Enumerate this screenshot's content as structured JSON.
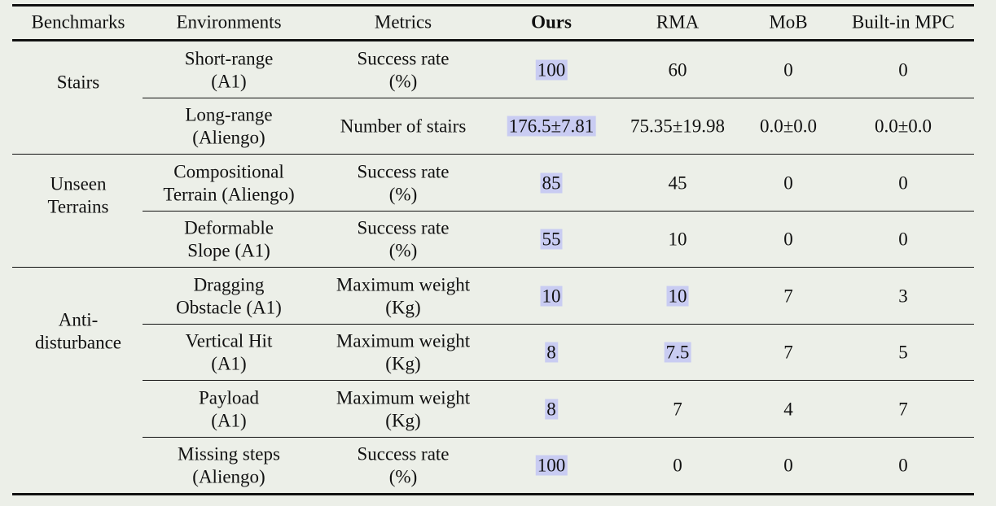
{
  "table": {
    "headers": {
      "benchmarks": "Benchmarks",
      "environments": "Environments",
      "metrics": "Metrics",
      "ours": "Ours",
      "rma": "RMA",
      "mob": "MoB",
      "mpc": "Built-in MPC"
    },
    "groups": {
      "stairs": "Stairs",
      "unseen_1": "Unseen",
      "unseen_2": "Terrains",
      "anti_1": "Anti-",
      "anti_2": "disturbance"
    },
    "rows": [
      {
        "env1": "Short-range",
        "env2": "(A1)",
        "met1": "Success rate",
        "met2": "(%)",
        "ours": "100",
        "rma": "60",
        "mob": "0",
        "mpc": "0"
      },
      {
        "env1": "Long-range",
        "env2": "(Aliengo)",
        "met1": "Number of stairs",
        "met2": "",
        "ours": "176.5±7.81",
        "rma": "75.35±19.98",
        "mob": "0.0±0.0",
        "mpc": "0.0±0.0"
      },
      {
        "env1": "Compositional",
        "env2": "Terrain (Aliengo)",
        "met1": "Success rate",
        "met2": "(%)",
        "ours": "85",
        "rma": "45",
        "mob": "0",
        "mpc": "0"
      },
      {
        "env1": "Deformable",
        "env2": "Slope (A1)",
        "met1": "Success rate",
        "met2": "(%)",
        "ours": "55",
        "rma": "10",
        "mob": "0",
        "mpc": "0"
      },
      {
        "env1": "Dragging",
        "env2": "Obstacle (A1)",
        "met1": "Maximum weight",
        "met2": "(Kg)",
        "ours": "10",
        "rma": "10",
        "mob": "7",
        "mpc": "3"
      },
      {
        "env1": "Vertical Hit",
        "env2": "(A1)",
        "met1": "Maximum weight",
        "met2": "(Kg)",
        "ours": "8",
        "rma": "7.5",
        "mob": "7",
        "mpc": "5"
      },
      {
        "env1": "Payload",
        "env2": "(A1)",
        "met1": "Maximum weight",
        "met2": "(Kg)",
        "ours": "8",
        "rma": "7",
        "mob": "4",
        "mpc": "7"
      },
      {
        "env1": "Missing steps",
        "env2": "(Aliengo)",
        "met1": "Success rate",
        "met2": "(%)",
        "ours": "100",
        "rma": "0",
        "mob": "0",
        "mpc": "0"
      }
    ]
  }
}
